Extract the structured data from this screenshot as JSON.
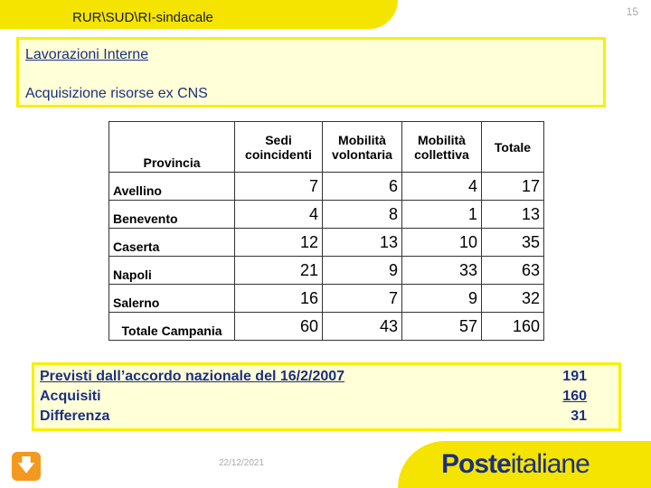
{
  "header": {
    "title": "RUR\\SUD\\RI-sindacale",
    "page_number": "15"
  },
  "intro": {
    "heading": "Lavorazioni Interne",
    "subheading": "Acquisizione risorse ex CNS"
  },
  "table": {
    "columns": [
      "Provincia",
      "Sedi coincidenti",
      "Mobilità volontaria",
      "Mobilità collettiva",
      "Totale"
    ],
    "rows": [
      [
        "Avellino",
        "7",
        "6",
        "4",
        "17"
      ],
      [
        "Benevento",
        "4",
        "8",
        "1",
        "13"
      ],
      [
        "Caserta",
        "12",
        "13",
        "10",
        "35"
      ],
      [
        "Napoli",
        "21",
        "9",
        "33",
        "63"
      ],
      [
        "Salerno",
        "16",
        "7",
        "9",
        "32"
      ],
      [
        "Totale Campania",
        "60",
        "43",
        "57",
        "160"
      ]
    ]
  },
  "summary": [
    {
      "label": "Previsti dall’accordo nazionale del 16/2/2007",
      "value": "191"
    },
    {
      "label": "Acquisiti",
      "value": "160"
    },
    {
      "label": "Differenza",
      "value": "31"
    }
  ],
  "footer": {
    "date": "22/12/2021",
    "logo_bold": "Poste",
    "logo_light": "italiane",
    "download_icon": "arrow-down-icon"
  },
  "colors": {
    "yellow": "#f5e400",
    "navy": "#1c2f80",
    "orange": "#f39a1e"
  }
}
